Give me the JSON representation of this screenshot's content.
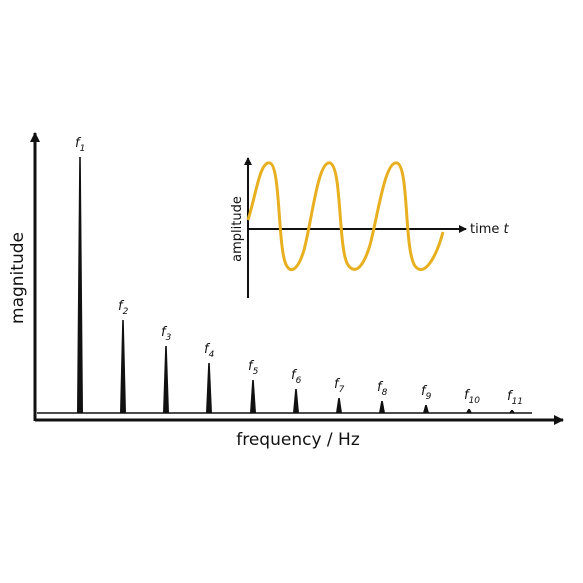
{
  "axes": {
    "x_label": "frequency / Hz",
    "y_label": "magnitude"
  },
  "harmonics": [
    {
      "symbol": "f",
      "index": "1"
    },
    {
      "symbol": "f",
      "index": "2"
    },
    {
      "symbol": "f",
      "index": "3"
    },
    {
      "symbol": "f",
      "index": "4"
    },
    {
      "symbol": "f",
      "index": "5"
    },
    {
      "symbol": "f",
      "index": "6"
    },
    {
      "symbol": "f",
      "index": "7"
    },
    {
      "symbol": "f",
      "index": "8"
    },
    {
      "symbol": "f",
      "index": "9"
    },
    {
      "symbol": "f",
      "index": "10"
    },
    {
      "symbol": "f",
      "index": "11"
    }
  ],
  "inset": {
    "x_label": "time",
    "x_symbol": "t",
    "y_label": "amplitude"
  }
}
